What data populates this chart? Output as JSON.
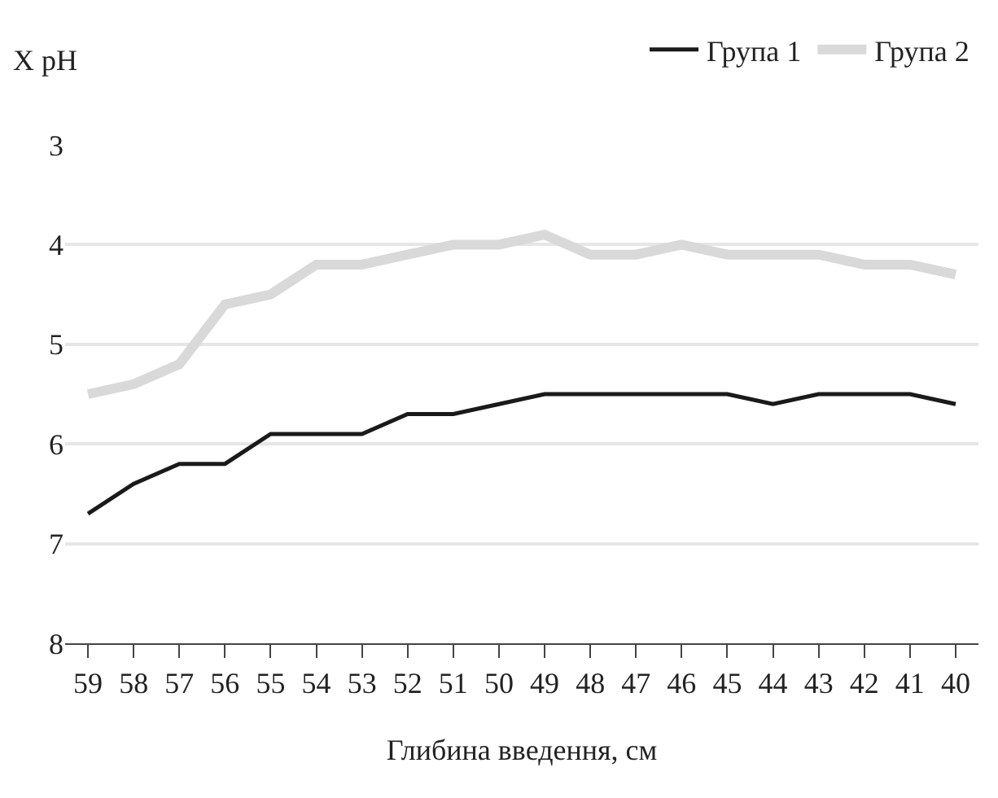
{
  "chart_data": {
    "type": "line",
    "categories": [
      "59",
      "58",
      "57",
      "56",
      "55",
      "54",
      "53",
      "52",
      "51",
      "50",
      "49",
      "48",
      "47",
      "46",
      "45",
      "44",
      "43",
      "42",
      "41",
      "40"
    ],
    "series": [
      {
        "name": "Група 1",
        "color": "#1a1a1a",
        "values": [
          6.7,
          6.4,
          6.2,
          6.2,
          5.9,
          5.9,
          5.9,
          5.7,
          5.7,
          5.6,
          5.5,
          5.5,
          5.5,
          5.5,
          5.5,
          5.6,
          5.5,
          5.5,
          5.5,
          5.6
        ]
      },
      {
        "name": "Група 2",
        "color": "#d9d9d9",
        "values": [
          5.5,
          5.4,
          5.2,
          4.6,
          4.5,
          4.2,
          4.2,
          4.1,
          4.0,
          4.0,
          3.9,
          4.1,
          4.1,
          4.0,
          4.1,
          4.1,
          4.1,
          4.2,
          4.2,
          4.3
        ]
      }
    ],
    "xlabel": "Глибина введення, см",
    "ylabel": "X pH",
    "ylim": [
      8,
      3
    ],
    "yticks": [
      3,
      4,
      5,
      6,
      7,
      8
    ],
    "grid": "y",
    "legend": "top right",
    "marker": "none",
    "line_style": "solid"
  }
}
